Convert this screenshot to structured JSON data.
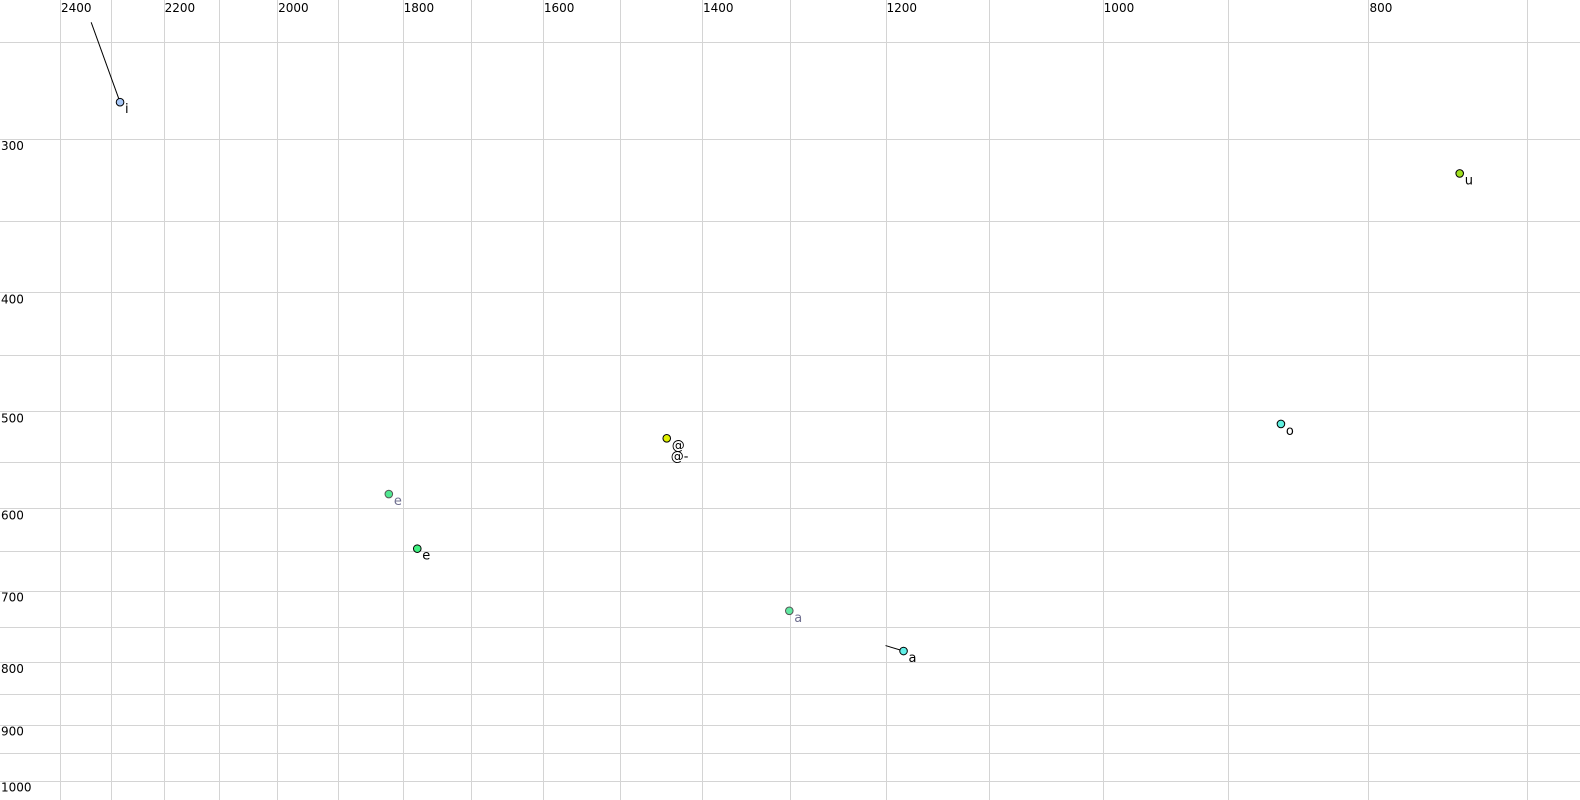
{
  "chart_data": {
    "type": "scatter",
    "title": "",
    "xlabel": "",
    "ylabel": "",
    "x_scale": "log",
    "y_scale": "log",
    "x_reversed": true,
    "xlim": [
      2450,
      680
    ],
    "ylim": [
      240,
      1010
    ],
    "grid": true,
    "x_ticks": [
      2400,
      2200,
      2000,
      1800,
      1600,
      1400,
      1200,
      1000,
      800
    ],
    "x_tick_labels": [
      "2400",
      "2200",
      "2000",
      "1800",
      "1600",
      "1400",
      "1200",
      "1000",
      "800"
    ],
    "x_minor_grid": [
      2300,
      2100,
      1900,
      1700,
      1500,
      1300,
      1100,
      900,
      700
    ],
    "y_ticks": [
      300,
      400,
      500,
      600,
      700,
      800,
      900,
      1000
    ],
    "y_tick_labels": [
      "300",
      "400",
      "500",
      "600",
      "700",
      "800",
      "900",
      "1000"
    ],
    "y_minor_grid": [
      250,
      350,
      450,
      550,
      650,
      750,
      850,
      950
    ],
    "points": [
      {
        "label": "i",
        "x": 2282,
        "y": 280,
        "color": "#a8c8f8",
        "label_color": "#000000",
        "trail": {
          "x": 2338,
          "y": 241
        }
      },
      {
        "label": "u",
        "x": 741,
        "y": 320,
        "color": "#a0e020",
        "label_color": "#000000"
      },
      {
        "label": "o",
        "x": 861,
        "y": 512,
        "color": "#60f0e0",
        "label_color": "#000000"
      },
      {
        "label": "@",
        "label2": "@-",
        "x": 1442,
        "y": 526,
        "color": "#e0f000",
        "label_color": "#000000"
      },
      {
        "label": "e",
        "x": 1821,
        "y": 584,
        "color": "#50e890",
        "label_color": "#707090"
      },
      {
        "label": "e",
        "x": 1778,
        "y": 647,
        "color": "#40f080",
        "label_color": "#000000"
      },
      {
        "label": "a",
        "x": 1301,
        "y": 727,
        "color": "#60e8a0",
        "label_color": "#707090"
      },
      {
        "label": "a",
        "x": 1182,
        "y": 784,
        "color": "#60f0e8",
        "label_color": "#000000",
        "trail": {
          "x": 1200,
          "y": 776
        }
      }
    ]
  }
}
